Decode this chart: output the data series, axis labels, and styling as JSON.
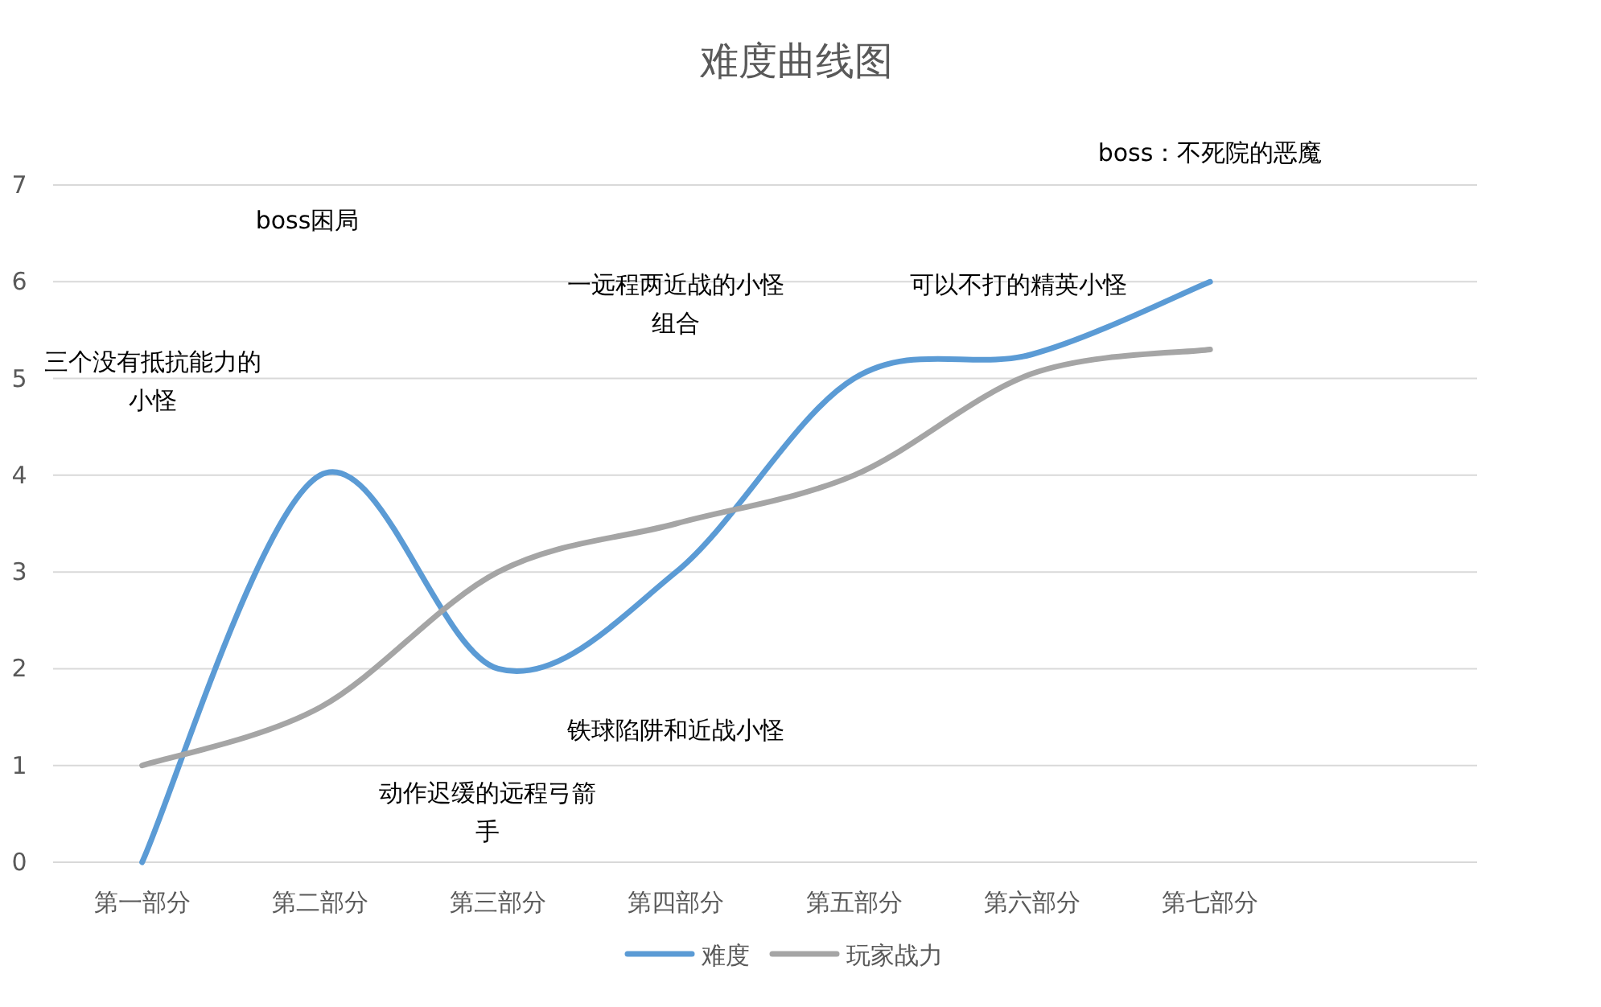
{
  "chart_data": {
    "type": "line",
    "title": "难度曲线图",
    "categories": [
      "第一部分",
      "第二部分",
      "第三部分",
      "第四部分",
      "第五部分",
      "第六部分",
      "第七部分"
    ],
    "series": [
      {
        "name": "难度",
        "color": "#5b9bd5",
        "values": [
          0,
          4,
          2,
          3,
          5,
          5.25,
          6
        ]
      },
      {
        "name": "玩家战力",
        "color": "#a5a5a5",
        "values": [
          1,
          1.6,
          3,
          3.5,
          4,
          5.05,
          5.3
        ]
      }
    ],
    "ylim": [
      0,
      7
    ],
    "yticks": [
      0,
      1,
      2,
      3,
      4,
      5,
      6,
      7
    ],
    "grid": "y",
    "legend": "bottom",
    "marker": "none",
    "line_style": "solid",
    "annotations": [
      "boss：不死院的恶魔",
      "boss困局",
      "一远程两近战的小怪组合",
      "可以不打的精英小怪",
      "三个没有抵抗能力的小怪",
      "铁球陷阱和近战小怪",
      "动作迟缓的远程弓箭手"
    ]
  }
}
